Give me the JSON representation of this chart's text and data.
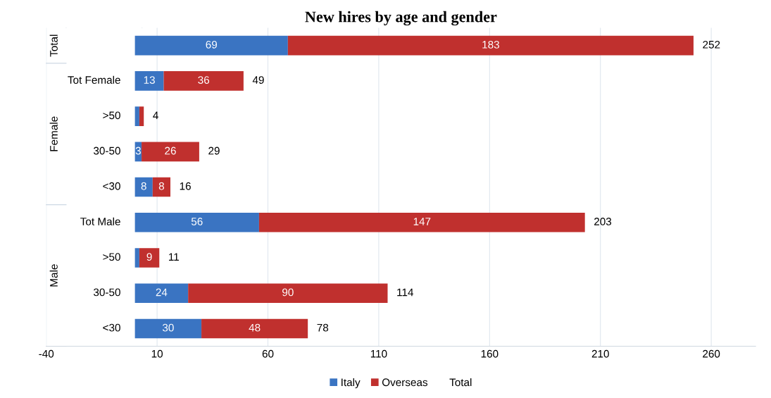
{
  "chart_data": {
    "type": "bar",
    "orientation": "horizontal",
    "stacked": true,
    "title": "New hires by age and gender",
    "categories": [
      null,
      "Tot Female",
      ">50",
      "30-50",
      "<30",
      "Tot Male",
      ">50",
      "30-50",
      "<30"
    ],
    "series": [
      {
        "name": "Italy",
        "color": "#3a74c2",
        "values": [
          69,
          13,
          2,
          3,
          8,
          56,
          2,
          24,
          30
        ],
        "value_labels": [
          "69",
          "13",
          null,
          "3",
          "8",
          "56",
          null,
          "24",
          "30"
        ]
      },
      {
        "name": "Overseas",
        "color": "#c0302e",
        "values": [
          183,
          36,
          2,
          26,
          8,
          147,
          9,
          90,
          48
        ],
        "value_labels": [
          "183",
          "36",
          null,
          "26",
          "8",
          "147",
          "9",
          "90",
          "48"
        ]
      },
      {
        "name": "Total",
        "values": [
          null,
          null,
          null,
          null,
          null,
          null,
          null,
          null,
          null
        ]
      }
    ],
    "totals": [
      "252",
      "49",
      "4",
      "29",
      "16",
      "203",
      "11",
      "114",
      "78"
    ],
    "annotations": [
      "Total",
      "Female",
      "Male"
    ],
    "xlim": [
      -40,
      280
    ],
    "xticks": [
      -40,
      10,
      60,
      110,
      160,
      210,
      260
    ],
    "grid": "x",
    "legend": "bottom"
  }
}
